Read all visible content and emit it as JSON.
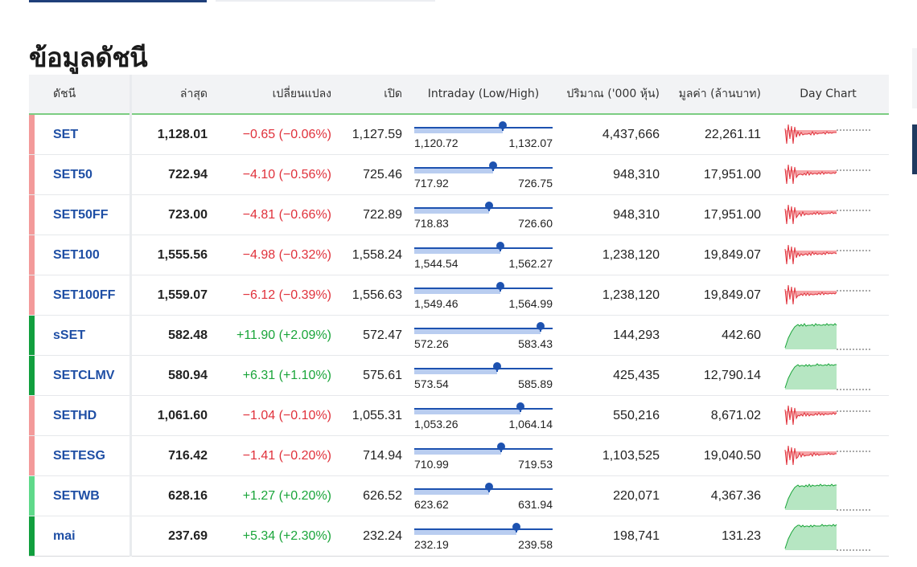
{
  "page": {
    "title": "ข้อมูลดัชนี"
  },
  "colors": {
    "down": "#e0313b",
    "up": "#1aa53a",
    "stripe_down": "#f39a9a",
    "stripe_up_strong": "#119f3e",
    "stripe_up_light": "#5fd98a",
    "link": "#1f4fa5"
  },
  "table": {
    "headers": {
      "name": "ดัชนี",
      "last": "ล่าสุด",
      "change": "เปลี่ยนแปลง",
      "open": "เปิด",
      "intraday": "Intraday (Low/High)",
      "volume": "ปริมาณ ('000 หุ้น)",
      "value": "มูลค่า (ล้านบาท)",
      "day_chart": "Day Chart"
    },
    "rows": [
      {
        "symbol": "SET",
        "last": "1,128.01",
        "change": "−0.65 (−0.06%)",
        "direction": "down",
        "stripe": "stripe_down",
        "open": "1,127.59",
        "low": "1,120.72",
        "high": "1,132.07",
        "position": 0.64,
        "volume": "4,437,666",
        "value": "22,261.11"
      },
      {
        "symbol": "SET50",
        "last": "722.94",
        "change": "−4.10 (−0.56%)",
        "direction": "down",
        "stripe": "stripe_down",
        "open": "725.46",
        "low": "717.92",
        "high": "726.75",
        "position": 0.57,
        "volume": "948,310",
        "value": "17,951.00"
      },
      {
        "symbol": "SET50FF",
        "last": "723.00",
        "change": "−4.81 (−0.66%)",
        "direction": "down",
        "stripe": "stripe_down",
        "open": "722.89",
        "low": "718.83",
        "high": "726.60",
        "position": 0.54,
        "volume": "948,310",
        "value": "17,951.00"
      },
      {
        "symbol": "SET100",
        "last": "1,555.56",
        "change": "−4.98 (−0.32%)",
        "direction": "down",
        "stripe": "stripe_down",
        "open": "1,558.24",
        "low": "1,544.54",
        "high": "1,562.27",
        "position": 0.62,
        "volume": "1,238,120",
        "value": "19,849.07"
      },
      {
        "symbol": "SET100FF",
        "last": "1,559.07",
        "change": "−6.12 (−0.39%)",
        "direction": "down",
        "stripe": "stripe_down",
        "open": "1,556.63",
        "low": "1,549.46",
        "high": "1,564.99",
        "position": 0.62,
        "volume": "1,238,120",
        "value": "19,849.07"
      },
      {
        "symbol": "sSET",
        "last": "582.48",
        "change": "+11.90 (+2.09%)",
        "direction": "up",
        "stripe": "stripe_up_strong",
        "open": "572.47",
        "low": "572.26",
        "high": "583.43",
        "position": 0.91,
        "volume": "144,293",
        "value": "442.60"
      },
      {
        "symbol": "SETCLMV",
        "last": "580.94",
        "change": "+6.31 (+1.10%)",
        "direction": "up",
        "stripe": "stripe_up_strong",
        "open": "575.61",
        "low": "573.54",
        "high": "585.89",
        "position": 0.6,
        "volume": "425,435",
        "value": "12,790.14"
      },
      {
        "symbol": "SETHD",
        "last": "1,061.60",
        "change": "−1.04 (−0.10%)",
        "direction": "down",
        "stripe": "stripe_down",
        "open": "1,055.31",
        "low": "1,053.26",
        "high": "1,064.14",
        "position": 0.77,
        "volume": "550,216",
        "value": "8,671.02"
      },
      {
        "symbol": "SETESG",
        "last": "716.42",
        "change": "−1.41 (−0.20%)",
        "direction": "down",
        "stripe": "stripe_down",
        "open": "714.94",
        "low": "710.99",
        "high": "719.53",
        "position": 0.63,
        "volume": "1,103,525",
        "value": "19,040.50"
      },
      {
        "symbol": "SETWB",
        "last": "628.16",
        "change": "+1.27 (+0.20%)",
        "direction": "up",
        "stripe": "stripe_up_light",
        "open": "626.52",
        "low": "623.62",
        "high": "631.94",
        "position": 0.54,
        "volume": "220,071",
        "value": "4,367.36"
      },
      {
        "symbol": "mai",
        "last": "237.69",
        "change": "+5.34 (+2.30%)",
        "direction": "up",
        "stripe": "stripe_up_strong",
        "open": "232.24",
        "low": "232.19",
        "high": "239.58",
        "position": 0.74,
        "volume": "198,741",
        "value": "131.23"
      }
    ]
  }
}
